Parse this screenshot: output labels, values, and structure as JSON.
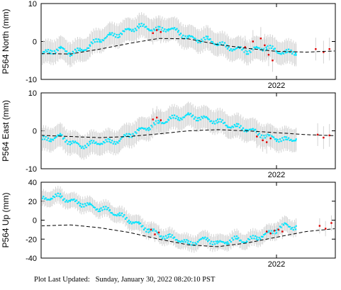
{
  "footer": {
    "label": "Plot Last Updated:",
    "timestamp": "Sunday, January 30, 2022 08:20:10 PST"
  },
  "style": {
    "error_bar_color": "#d3d3d3",
    "daily_color": "#00e5ff",
    "rapid_color": "#e00000",
    "model_color": "#000000"
  },
  "chart_data": [
    {
      "type": "scatter",
      "ylabel": "P564 North (mm)",
      "ylim": [
        -10,
        10
      ],
      "yticks": [
        -10,
        0,
        10
      ],
      "xlim": [
        2020.8,
        2022.3
      ],
      "xtick_label": "2022",
      "xtick_value": 2022.0,
      "daily": {
        "x": [
          2020.8,
          2020.85,
          2020.9,
          2020.95,
          2021.0,
          2021.05,
          2021.1,
          2021.15,
          2021.2,
          2021.25,
          2021.3,
          2021.35,
          2021.4,
          2021.45,
          2021.5,
          2021.55,
          2021.6,
          2021.65,
          2021.7,
          2021.75,
          2021.8,
          2021.85,
          2021.9,
          2021.95,
          2022.0,
          2022.05,
          2022.1
        ],
        "y": [
          -3.5,
          -2.5,
          -2.0,
          -3.0,
          -2.5,
          -1.0,
          0.5,
          1.5,
          2.0,
          3.0,
          4.0,
          3.5,
          3.0,
          3.5,
          2.5,
          1.0,
          0.5,
          0.5,
          -0.5,
          -1.5,
          -2.0,
          -2.5,
          -2.0,
          -1.5,
          -2.5,
          -3.0,
          -2.8
        ],
        "err": 3.0
      },
      "rapid": {
        "x": [
          2021.37,
          2021.39,
          2021.41,
          2021.84,
          2021.88,
          2021.92,
          2021.94,
          2021.96,
          2021.98,
          2022.2,
          2022.24,
          2022.27
        ],
        "y": [
          2.2,
          3.0,
          2.5,
          -1.5,
          0.0,
          0.8,
          -1.0,
          -3.5,
          -5.0,
          -2.0,
          -2.8,
          -2.0
        ],
        "err": 3.0
      },
      "model": {
        "x": [
          2020.8,
          2020.95,
          2021.1,
          2021.25,
          2021.4,
          2021.55,
          2021.7,
          2021.85,
          2022.0,
          2022.15,
          2022.3
        ],
        "y": [
          -3.2,
          -3.3,
          -2.0,
          -0.5,
          0.8,
          0.7,
          -0.8,
          -1.8,
          -2.6,
          -2.8,
          -2.5
        ]
      }
    },
    {
      "type": "scatter",
      "ylabel": "P564 East (mm)",
      "ylim": [
        -10,
        10
      ],
      "yticks": [
        -10,
        0,
        10
      ],
      "xlim": [
        2020.8,
        2022.3
      ],
      "xtick_label": "2022",
      "xtick_value": 2022.0,
      "daily": {
        "x": [
          2020.8,
          2020.85,
          2020.9,
          2020.95,
          2021.0,
          2021.05,
          2021.1,
          2021.15,
          2021.2,
          2021.25,
          2021.3,
          2021.35,
          2021.4,
          2021.45,
          2021.5,
          2021.55,
          2021.6,
          2021.65,
          2021.7,
          2021.75,
          2021.8,
          2021.85,
          2021.9,
          2021.95,
          2022.0,
          2022.05,
          2022.1
        ],
        "y": [
          -2.5,
          -2.0,
          -1.5,
          -3.0,
          -4.0,
          -3.5,
          -3.0,
          -3.0,
          -2.5,
          -1.0,
          0.0,
          1.0,
          2.0,
          3.0,
          3.5,
          4.0,
          3.5,
          3.0,
          2.5,
          1.5,
          1.0,
          0.5,
          -0.5,
          -1.5,
          -2.0,
          -2.5,
          -2.0
        ],
        "err": 3.0
      },
      "rapid": {
        "x": [
          2021.37,
          2021.39,
          2021.41,
          2021.9,
          2021.93,
          2021.95,
          2021.97,
          2022.21,
          2022.24,
          2022.27
        ],
        "y": [
          3.0,
          3.5,
          2.8,
          -1.5,
          -2.5,
          -3.0,
          -2.0,
          -1.0,
          -1.8,
          -1.2
        ],
        "err": 3.0
      },
      "model": {
        "x": [
          2020.8,
          2020.95,
          2021.1,
          2021.25,
          2021.4,
          2021.55,
          2021.7,
          2021.85,
          2022.0,
          2022.15,
          2022.3
        ],
        "y": [
          -1.2,
          -1.5,
          -1.8,
          -1.5,
          -0.8,
          0.0,
          0.3,
          0.0,
          -0.5,
          -1.0,
          -1.3
        ]
      }
    },
    {
      "type": "scatter",
      "ylabel": "P564 Up (mm)",
      "ylim": [
        -40,
        40
      ],
      "yticks": [
        -40,
        -20,
        0,
        20,
        40
      ],
      "xlim": [
        2020.8,
        2022.3
      ],
      "xtick_label": "2022",
      "xtick_value": 2022.0,
      "daily": {
        "x": [
          2020.8,
          2020.85,
          2020.9,
          2020.95,
          2021.0,
          2021.05,
          2021.1,
          2021.15,
          2021.2,
          2021.25,
          2021.3,
          2021.35,
          2021.4,
          2021.45,
          2021.5,
          2021.55,
          2021.6,
          2021.65,
          2021.7,
          2021.75,
          2021.8,
          2021.85,
          2021.9,
          2021.95,
          2022.0,
          2022.05,
          2022.1
        ],
        "y": [
          22,
          24,
          25,
          20,
          18,
          15,
          12,
          10,
          5,
          0,
          -5,
          -10,
          -15,
          -18,
          -20,
          -25,
          -22,
          -20,
          -25,
          -22,
          -20,
          -22,
          -18,
          -15,
          -10,
          -5,
          -8
        ],
        "err": 8.0
      },
      "rapid": {
        "x": [
          2021.36,
          2021.38,
          2021.4,
          2021.95,
          2021.97,
          2021.99,
          2022.01,
          2022.03,
          2022.22,
          2022.25,
          2022.28
        ],
        "y": [
          -10,
          -15,
          -13,
          -12,
          -14,
          -11,
          -10,
          -12,
          -6,
          -9,
          -3
        ],
        "err": 8.0
      },
      "model": {
        "x": [
          2020.8,
          2020.95,
          2021.1,
          2021.25,
          2021.4,
          2021.55,
          2021.7,
          2021.85,
          2022.0,
          2022.15,
          2022.3
        ],
        "y": [
          -6,
          -5,
          -8,
          -13,
          -20,
          -26,
          -28,
          -24,
          -18,
          -12,
          -9
        ]
      }
    }
  ]
}
